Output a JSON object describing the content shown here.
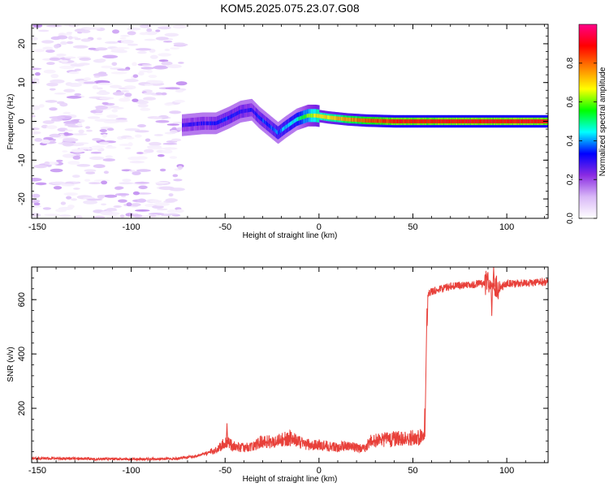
{
  "title": "KOM5.2025.075.23.07.G08",
  "chart_data": [
    {
      "type": "heatmap",
      "title": "KOM5.2025.075.23.07.G08",
      "xlabel": "Height of straight line (km)",
      "ylabel": "Frequency (Hz)",
      "xlim": [
        -153,
        122
      ],
      "ylim": [
        -25,
        25
      ],
      "x_ticks": [
        -150,
        -100,
        -50,
        0,
        50,
        100
      ],
      "y_ticks": [
        -20,
        -10,
        0,
        10,
        20
      ],
      "colorbar": {
        "label": "Normalized spectral amplitude",
        "range": [
          0,
          1
        ],
        "ticks": [
          0.0,
          0.2,
          0.4,
          0.6,
          0.8
        ],
        "colors": [
          "#ffffff",
          "#d9b8f7",
          "#8a2be2",
          "#0000ff",
          "#00ffff",
          "#00ff00",
          "#ffff00",
          "#ff8000",
          "#ff0000",
          "#ff0088"
        ]
      },
      "ridge": {
        "x": [
          -73,
          -62,
          -55,
          -48,
          -42,
          -36,
          -32,
          -27,
          -22,
          -18,
          -12,
          -6,
          -2,
          5,
          15,
          25,
          40,
          55,
          70,
          85,
          100,
          122
        ],
        "frequency": [
          -1.0,
          -0.5,
          -0.5,
          1.0,
          2.5,
          3.0,
          1.0,
          -1.0,
          -3.0,
          -1.5,
          0.5,
          1.5,
          1.5,
          1.0,
          0.5,
          0.2,
          0.0,
          0.0,
          0.0,
          0.0,
          0.0,
          0.0
        ],
        "amplitude": [
          0.28,
          0.3,
          0.32,
          0.34,
          0.32,
          0.3,
          0.34,
          0.36,
          0.38,
          0.42,
          0.46,
          0.6,
          0.68,
          0.7,
          0.76,
          0.82,
          0.88,
          0.88,
          0.9,
          0.9,
          0.9,
          0.9
        ]
      },
      "noise_region_x": [
        -153,
        -73
      ],
      "noise_amplitude_range": [
        0.02,
        0.15
      ]
    },
    {
      "type": "line",
      "xlabel": "Height of straight line (km)",
      "ylabel": "SNR (v/v)",
      "xlim": [
        -153,
        122
      ],
      "ylim": [
        0,
        720
      ],
      "x_ticks": [
        -150,
        -100,
        -50,
        0,
        50,
        100
      ],
      "y_ticks": [
        200,
        400,
        600
      ],
      "color": "#e8403a",
      "x": [
        -153,
        -130,
        -100,
        -75,
        -65,
        -55,
        -50,
        -45,
        -40,
        -35,
        -30,
        -25,
        -20,
        -15,
        -10,
        -5,
        0,
        5,
        10,
        15,
        20,
        25,
        27,
        35,
        45,
        56,
        57,
        58,
        60,
        70,
        80,
        90,
        95,
        100,
        110,
        122
      ],
      "y": [
        15,
        15,
        12,
        15,
        25,
        45,
        75,
        60,
        55,
        60,
        80,
        75,
        85,
        90,
        75,
        65,
        65,
        60,
        55,
        65,
        55,
        50,
        80,
        85,
        90,
        95,
        300,
        620,
        630,
        650,
        655,
        660,
        640,
        660,
        660,
        665
      ],
      "annotations": [
        {
          "x": -49,
          "y": 145,
          "text": ""
        },
        {
          "x": 93,
          "y": 720,
          "text": ""
        },
        {
          "x": 92,
          "y": 540,
          "text": ""
        }
      ]
    }
  ]
}
